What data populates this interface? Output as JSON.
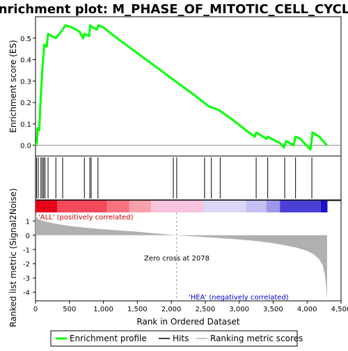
{
  "chart_data": {
    "type": "line",
    "title": "Enrichment plot: M_PHASE_OF_MITOTIC_CELL_CYCLE",
    "top_panel": {
      "ylabel": "Enrichment score (ES)",
      "ylim": [
        -0.05,
        0.6
      ],
      "yticks": [
        "0.0",
        "0.1",
        "0.2",
        "0.3",
        "0.4",
        "0.5"
      ],
      "series": [
        {
          "name": "Enrichment profile",
          "color": "#00ff00",
          "x": [
            0,
            18,
            30,
            55,
            75,
            88,
            100,
            115,
            130,
            165,
            185,
            300,
            400,
            440,
            540,
            650,
            700,
            720,
            790,
            805,
            845,
            905,
            925,
            1000,
            1200,
            1500,
            1800,
            2100,
            2400,
            2520,
            2560,
            2660,
            2720,
            2900,
            3100,
            3230,
            3250,
            3400,
            3420,
            3600,
            3660,
            3690,
            3800,
            3830,
            3900,
            4050,
            4080,
            4180,
            4290
          ],
          "y": [
            0.0,
            0.01,
            0.08,
            0.07,
            0.21,
            0.28,
            0.35,
            0.41,
            0.47,
            0.46,
            0.52,
            0.5,
            0.54,
            0.56,
            0.55,
            0.53,
            0.5,
            0.52,
            0.51,
            0.56,
            0.55,
            0.54,
            0.56,
            0.55,
            0.5,
            0.43,
            0.36,
            0.29,
            0.22,
            0.19,
            0.18,
            0.17,
            0.16,
            0.12,
            0.07,
            0.04,
            0.06,
            0.03,
            0.04,
            0.01,
            -0.01,
            0.02,
            0.0,
            0.04,
            0.03,
            -0.02,
            0.06,
            0.04,
            0.0
          ]
        }
      ]
    },
    "hits": [
      15,
      40,
      80,
      100,
      120,
      140,
      185,
      300,
      400,
      720,
      800,
      820,
      920,
      2030,
      2080,
      2490,
      2590,
      2720,
      3250,
      3420,
      3670,
      3830,
      4070
    ],
    "rank_metric": {
      "ylabel": "Ranked list metric (Signal2Noise)",
      "xlabel": "Rank in Ordered Dataset",
      "ylim": [
        -4.6,
        1.6
      ],
      "yticks": [
        "1",
        "0",
        "-1",
        "-2",
        "-3",
        "-4"
      ],
      "xlim": [
        0,
        4500
      ],
      "xticks": [
        "0",
        "500",
        "1,000",
        "1,500",
        "2,000",
        "2,500",
        "3,000",
        "3,500",
        "4,000",
        "4,500"
      ],
      "x": [
        0,
        50,
        150,
        300,
        500,
        800,
        1100,
        1400,
        1700,
        1900,
        2078,
        2300,
        2600,
        2900,
        3200,
        3450,
        3650,
        3850,
        4000,
        4100,
        4180,
        4230,
        4260,
        4280,
        4295
      ],
      "values": [
        1.35,
        1.1,
        0.95,
        0.8,
        0.65,
        0.5,
        0.38,
        0.28,
        0.16,
        0.07,
        0.0,
        -0.07,
        -0.16,
        -0.26,
        -0.38,
        -0.52,
        -0.68,
        -0.88,
        -1.1,
        -1.35,
        -1.7,
        -2.1,
        -2.7,
        -3.5,
        -4.5
      ],
      "fill_color": "#b0b0b0",
      "zero_cross_label": "Zero cross at 2078",
      "positive_label": "'ALL' (positively correlated)",
      "negative_label": "'HEA' (negatively correlated)",
      "positive_color": "#cc0000",
      "negative_color": "#0000cc"
    },
    "color_bar": [
      {
        "from": 0,
        "to": 320,
        "color": "#e8001a"
      },
      {
        "from": 320,
        "to": 1050,
        "color": "#f24a5a"
      },
      {
        "from": 1050,
        "to": 1380,
        "color": "#f6727f"
      },
      {
        "from": 1380,
        "to": 1700,
        "color": "#f9a1aa"
      },
      {
        "from": 1700,
        "to": 2470,
        "color": "#fac3de"
      },
      {
        "from": 2470,
        "to": 3100,
        "color": "#dad7f7"
      },
      {
        "from": 3100,
        "to": 3400,
        "color": "#c4c0f2"
      },
      {
        "from": 3400,
        "to": 3600,
        "color": "#9d97ea"
      },
      {
        "from": 3600,
        "to": 4200,
        "color": "#4b3fd6"
      },
      {
        "from": 4200,
        "to": 4300,
        "color": "#1e10c8"
      }
    ],
    "legend": {
      "items": [
        {
          "label": "Enrichment profile",
          "color": "#00ff00"
        },
        {
          "label": "Hits",
          "color": "#000000"
        },
        {
          "label": "Ranking metric scores",
          "color": "#b0b0b0"
        }
      ]
    }
  }
}
